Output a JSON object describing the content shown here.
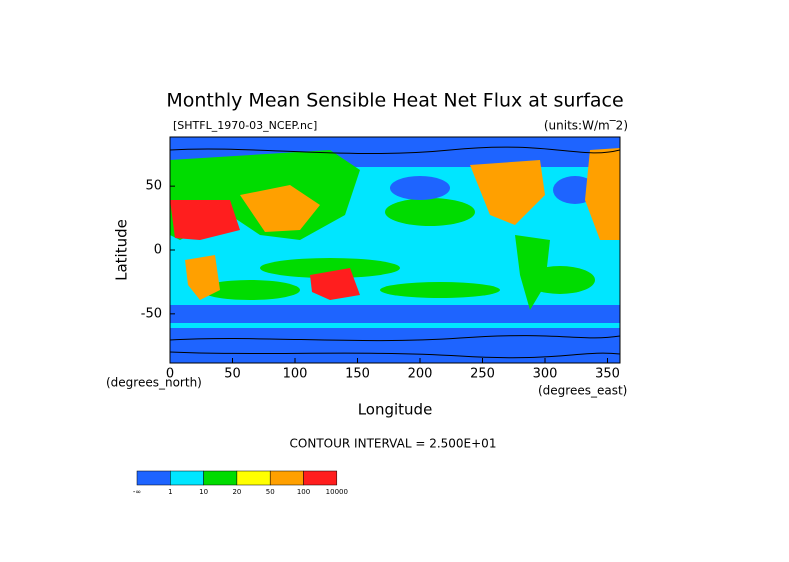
{
  "chart_data": {
    "type": "contour",
    "title": "Monthly Mean Sensible Heat Net Flux at surface",
    "file_label": "[SHTFL_1970-03_NCEP.nc]",
    "units_label": "(units:W/m‾2)",
    "x_label": "Longitude",
    "y_label": "Latitude",
    "x_unit": "(degrees_east)",
    "y_unit": "(degrees_north)",
    "contour_note": "CONTOUR INTERVAL = 2.500E+01",
    "xlim": [
      0,
      360
    ],
    "xticks": [
      0,
      50,
      100,
      150,
      200,
      250,
      300,
      350
    ],
    "ylim": [
      -88.5,
      88.5
    ],
    "yticks": [
      -50,
      0,
      50
    ],
    "colorbar": {
      "colors": [
        "#1e64ff",
        "#00e6ff",
        "#00dc00",
        "#ffff00",
        "#ffa000",
        "#ff1e1e"
      ],
      "labels": [
        "-∞",
        "1",
        "10",
        "20",
        "50",
        "100",
        "10000"
      ]
    }
  }
}
